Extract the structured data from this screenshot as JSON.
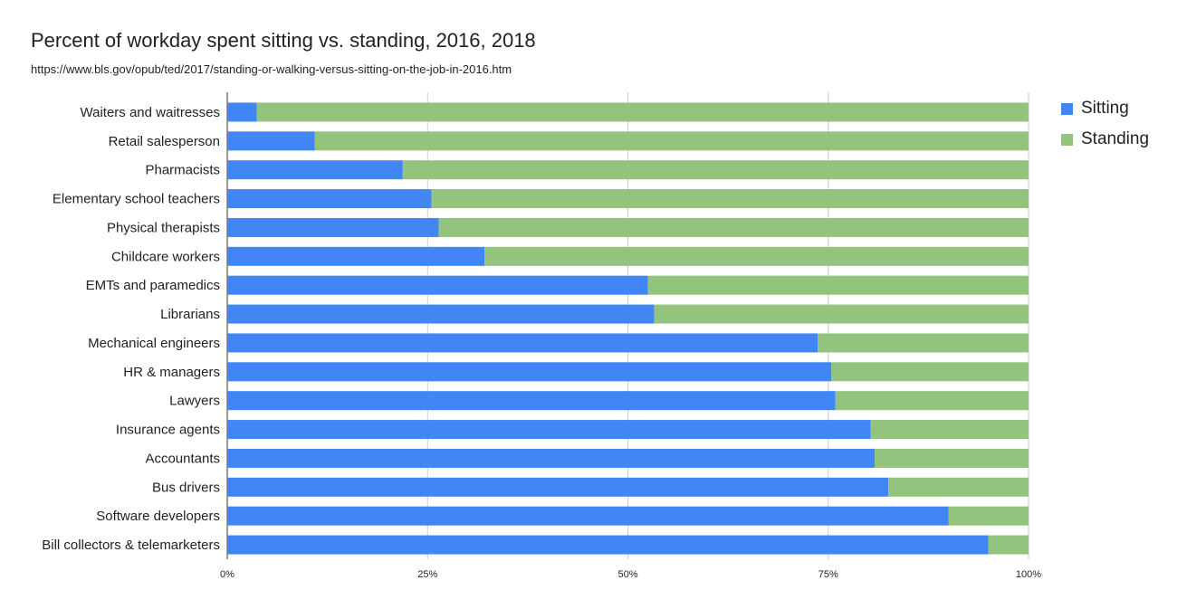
{
  "chart_data": {
    "type": "bar",
    "orientation": "horizontal",
    "stacked": true,
    "normalized": true,
    "title": "Percent of workday spent sitting vs. standing, 2016, 2018",
    "subtitle": "https://www.bls.gov/opub/ted/2017/standing-or-walking-versus-sitting-on-the-job-in-2016.htm",
    "categories": [
      "Waiters and waitresses",
      "Retail salesperson",
      "Pharmacists",
      "Elementary school teachers",
      "Physical therapists",
      "Childcare workers",
      "EMTs and paramedics",
      "Librarians",
      "Mechanical engineers",
      "HR & managers",
      "Lawyers",
      "Insurance agents",
      "Accountants",
      "Bus drivers",
      "Software developers",
      "Bill collectors & telemarketers"
    ],
    "series": [
      {
        "name": "Sitting",
        "color": "#4285f4",
        "values": [
          3.7,
          10.9,
          21.9,
          25.5,
          26.4,
          32.1,
          52.5,
          53.3,
          73.7,
          75.4,
          75.9,
          80.3,
          80.8,
          82.5,
          90.0,
          95.0
        ]
      },
      {
        "name": "Standing",
        "color": "#93c47d",
        "values": [
          96.3,
          89.1,
          78.1,
          74.5,
          73.6,
          67.9,
          47.5,
          46.7,
          26.3,
          24.6,
          24.1,
          19.7,
          19.2,
          17.5,
          10.0,
          5.0
        ]
      }
    ],
    "xaxis": {
      "ticks": [
        "0%",
        "25%",
        "50%",
        "75%",
        "100%"
      ],
      "range": [
        0,
        100
      ]
    },
    "grid": true,
    "legend": "right"
  }
}
